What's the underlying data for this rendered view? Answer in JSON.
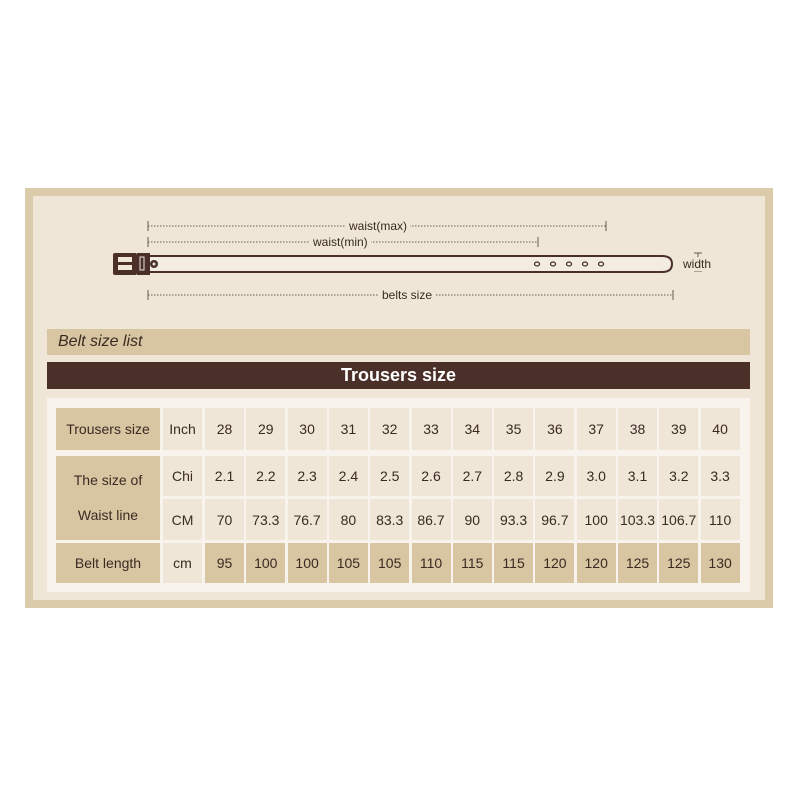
{
  "diagram": {
    "waist_max": "waist(max)",
    "waist_min": "waist(min)",
    "belts_size": "belts size",
    "width": "width"
  },
  "section_label": "Belt size list",
  "table_title": "Trousers size",
  "table": {
    "columns": [
      "28",
      "29",
      "30",
      "31",
      "32",
      "33",
      "34",
      "35",
      "36",
      "37",
      "38",
      "39",
      "40"
    ],
    "trousers_label": "Trousers size",
    "trousers_unit": "Inch",
    "waist_label_line1": "The size of",
    "waist_label_line2": "Waist line",
    "chi_unit": "Chi",
    "chi_values": [
      "2.1",
      "2.2",
      "2.3",
      "2.4",
      "2.5",
      "2.6",
      "2.7",
      "2.8",
      "2.9",
      "3.0",
      "3.1",
      "3.2",
      "3.3"
    ],
    "cm_unit": "CM",
    "cm_values": [
      "70",
      "73.3",
      "76.7",
      "80",
      "83.3",
      "86.7",
      "90",
      "93.3",
      "96.7",
      "100",
      "103.3",
      "106.7",
      "110"
    ],
    "belt_label": "Belt length",
    "belt_unit": "cm",
    "belt_values": [
      "95",
      "100",
      "100",
      "105",
      "105",
      "110",
      "115",
      "115",
      "120",
      "120",
      "125",
      "125",
      "130"
    ]
  },
  "colors": {
    "frame": "#dccbab",
    "panel": "#efe6d7",
    "accent": "#d8c6a2",
    "title_bar": "#4a3029"
  }
}
